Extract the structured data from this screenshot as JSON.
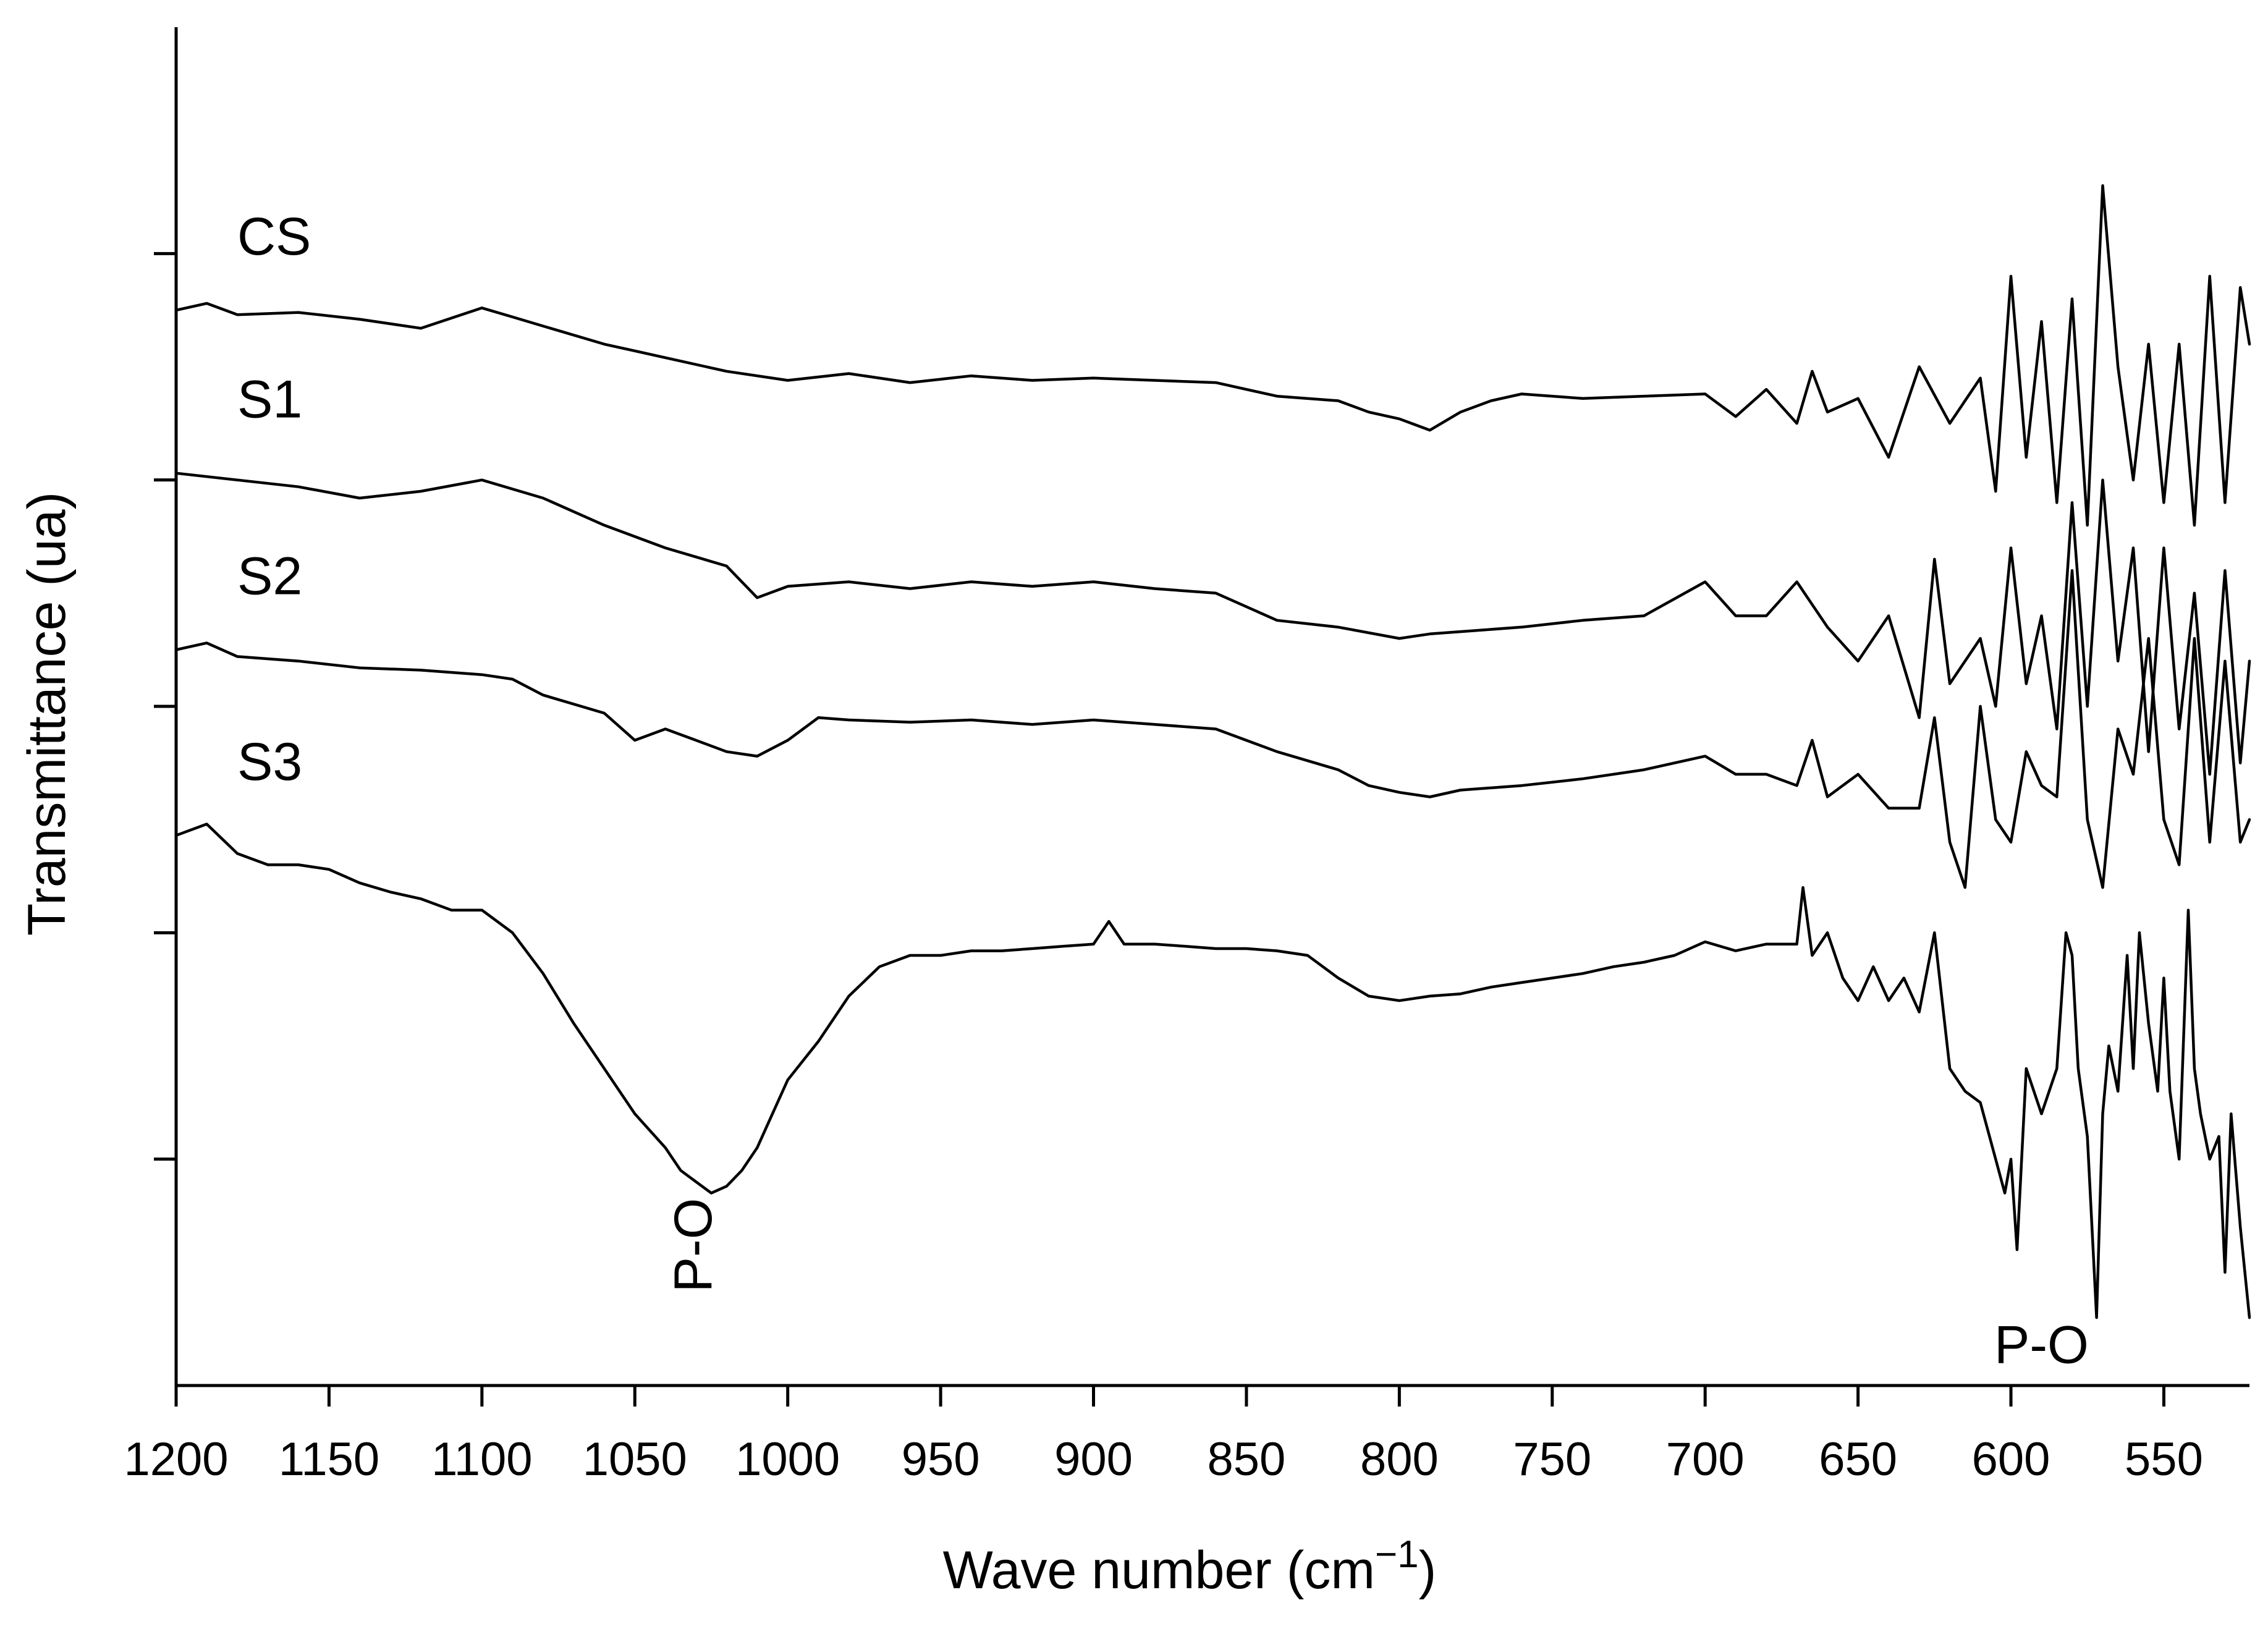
{
  "chart_data": {
    "type": "line",
    "title": "",
    "xlabel": "Wave number (cm",
    "xlabel_sup": "−1",
    "xlabel_close": ")",
    "ylabel": "Transmittance (ua)",
    "xlim": [
      1200,
      522
    ],
    "xticks": [
      "1200",
      "1150",
      "1100",
      "1050",
      "1000",
      "950",
      "900",
      "850",
      "800",
      "750",
      "700",
      "650",
      "600",
      "550"
    ],
    "xtick_values": [
      1200,
      1150,
      1100,
      1050,
      1000,
      950,
      900,
      850,
      800,
      750,
      700,
      650,
      600,
      550
    ],
    "ylim": [
      0,
      6
    ],
    "ytick_values": [
      1,
      2,
      3,
      4,
      5
    ],
    "grid": false,
    "series": [
      {
        "name": "CS",
        "x": [
          1200,
          1190,
          1180,
          1160,
          1140,
          1120,
          1100,
          1090,
          1080,
          1060,
          1040,
          1020,
          1000,
          980,
          960,
          940,
          920,
          900,
          880,
          860,
          840,
          820,
          810,
          800,
          790,
          780,
          770,
          760,
          750,
          740,
          720,
          700,
          690,
          680,
          670,
          665,
          660,
          650,
          640,
          630,
          620,
          610,
          605,
          600,
          595,
          590,
          585,
          580,
          575,
          570,
          565,
          560,
          555,
          550,
          545,
          540,
          535,
          530,
          525,
          522
        ],
        "y": [
          4.75,
          4.78,
          4.73,
          4.74,
          4.71,
          4.67,
          4.76,
          4.72,
          4.68,
          4.6,
          4.54,
          4.48,
          4.44,
          4.47,
          4.43,
          4.46,
          4.44,
          4.45,
          4.44,
          4.43,
          4.37,
          4.35,
          4.3,
          4.27,
          4.22,
          4.3,
          4.35,
          4.38,
          4.37,
          4.36,
          4.37,
          4.38,
          4.28,
          4.4,
          4.25,
          4.48,
          4.3,
          4.36,
          4.1,
          4.5,
          4.25,
          4.45,
          3.95,
          4.9,
          4.1,
          4.7,
          3.9,
          4.8,
          3.8,
          5.3,
          4.5,
          4.0,
          4.6,
          3.9,
          4.6,
          3.8,
          4.9,
          3.9,
          4.85,
          4.6
        ]
      },
      {
        "name": "S1",
        "x": [
          1200,
          1180,
          1160,
          1140,
          1120,
          1100,
          1080,
          1060,
          1040,
          1020,
          1010,
          1000,
          980,
          960,
          940,
          920,
          900,
          880,
          860,
          840,
          820,
          800,
          790,
          780,
          760,
          740,
          720,
          700,
          690,
          680,
          670,
          660,
          650,
          640,
          630,
          625,
          620,
          610,
          605,
          600,
          595,
          590,
          585,
          580,
          575,
          570,
          565,
          560,
          555,
          550,
          545,
          540,
          535,
          530,
          525,
          522
        ],
        "y": [
          4.03,
          4.0,
          3.97,
          3.92,
          3.95,
          4.0,
          3.92,
          3.8,
          3.7,
          3.62,
          3.48,
          3.53,
          3.55,
          3.52,
          3.55,
          3.53,
          3.55,
          3.52,
          3.5,
          3.38,
          3.35,
          3.3,
          3.32,
          3.33,
          3.35,
          3.38,
          3.4,
          3.55,
          3.4,
          3.4,
          3.55,
          3.35,
          3.2,
          3.4,
          2.95,
          3.65,
          3.1,
          3.3,
          3.0,
          3.7,
          3.1,
          3.4,
          2.9,
          3.9,
          3.0,
          4.0,
          3.2,
          3.7,
          2.8,
          3.7,
          2.9,
          3.5,
          2.7,
          3.6,
          2.75,
          3.2
        ]
      },
      {
        "name": "S2",
        "x": [
          1200,
          1190,
          1180,
          1160,
          1140,
          1120,
          1100,
          1090,
          1080,
          1060,
          1050,
          1040,
          1030,
          1020,
          1010,
          1000,
          990,
          980,
          960,
          940,
          920,
          900,
          880,
          860,
          840,
          820,
          810,
          800,
          790,
          780,
          760,
          740,
          720,
          700,
          690,
          680,
          670,
          665,
          660,
          650,
          640,
          630,
          625,
          620,
          615,
          610,
          605,
          600,
          595,
          590,
          585,
          580,
          575,
          570,
          565,
          560,
          555,
          550,
          545,
          540,
          535,
          530,
          525,
          522
        ],
        "y": [
          3.25,
          3.28,
          3.22,
          3.2,
          3.17,
          3.16,
          3.14,
          3.12,
          3.05,
          2.97,
          2.85,
          2.9,
          2.85,
          2.8,
          2.78,
          2.85,
          2.95,
          2.94,
          2.93,
          2.94,
          2.92,
          2.94,
          2.92,
          2.9,
          2.8,
          2.72,
          2.65,
          2.62,
          2.6,
          2.63,
          2.65,
          2.68,
          2.72,
          2.78,
          2.7,
          2.7,
          2.65,
          2.85,
          2.6,
          2.7,
          2.55,
          2.55,
          2.95,
          2.4,
          2.2,
          3.0,
          2.5,
          2.4,
          2.8,
          2.65,
          2.6,
          3.6,
          2.5,
          2.2,
          2.9,
          2.7,
          3.3,
          2.5,
          2.3,
          3.3,
          2.4,
          3.2,
          2.4,
          2.5
        ]
      },
      {
        "name": "S3",
        "x": [
          1200,
          1190,
          1180,
          1170,
          1160,
          1150,
          1140,
          1130,
          1120,
          1110,
          1100,
          1090,
          1080,
          1070,
          1060,
          1050,
          1040,
          1035,
          1030,
          1025,
          1020,
          1015,
          1010,
          1005,
          1000,
          990,
          980,
          970,
          960,
          950,
          940,
          930,
          920,
          910,
          900,
          895,
          890,
          880,
          870,
          860,
          850,
          840,
          830,
          820,
          810,
          800,
          790,
          780,
          770,
          760,
          750,
          740,
          730,
          720,
          710,
          700,
          690,
          680,
          670,
          668,
          665,
          660,
          655,
          650,
          645,
          640,
          635,
          630,
          625,
          620,
          615,
          610,
          605,
          602,
          600,
          598,
          595,
          590,
          585,
          582,
          580,
          578,
          575,
          572,
          570,
          568,
          565,
          562,
          560,
          558,
          555,
          552,
          550,
          548,
          545,
          542,
          540,
          538,
          535,
          532,
          530,
          528,
          525,
          522
        ],
        "y": [
          2.43,
          2.48,
          2.35,
          2.3,
          2.3,
          2.28,
          2.22,
          2.18,
          2.15,
          2.1,
          2.1,
          2.0,
          1.82,
          1.6,
          1.4,
          1.2,
          1.05,
          0.95,
          0.9,
          0.85,
          0.88,
          0.95,
          1.05,
          1.2,
          1.35,
          1.52,
          1.72,
          1.85,
          1.9,
          1.9,
          1.92,
          1.92,
          1.93,
          1.94,
          1.95,
          2.05,
          1.95,
          1.95,
          1.94,
          1.93,
          1.93,
          1.92,
          1.9,
          1.8,
          1.72,
          1.7,
          1.72,
          1.73,
          1.76,
          1.78,
          1.8,
          1.82,
          1.85,
          1.87,
          1.9,
          1.96,
          1.92,
          1.95,
          1.95,
          2.2,
          1.9,
          2.0,
          1.8,
          1.7,
          1.85,
          1.7,
          1.8,
          1.65,
          2.0,
          1.4,
          1.3,
          1.25,
          1.0,
          0.85,
          1.0,
          0.6,
          1.4,
          1.2,
          1.4,
          2.0,
          1.9,
          1.4,
          1.1,
          0.3,
          1.2,
          1.5,
          1.3,
          1.9,
          1.4,
          2.0,
          1.6,
          1.3,
          1.8,
          1.3,
          1.0,
          2.1,
          1.4,
          1.2,
          1.0,
          1.1,
          0.5,
          1.2,
          0.7,
          0.3
        ]
      }
    ],
    "annotations": [
      {
        "text": "P-O",
        "x": 1025,
        "y": 0.62,
        "rotate": -90
      },
      {
        "text": "P-O",
        "x": 590,
        "y": 0.1,
        "rotate": 0
      }
    ]
  }
}
